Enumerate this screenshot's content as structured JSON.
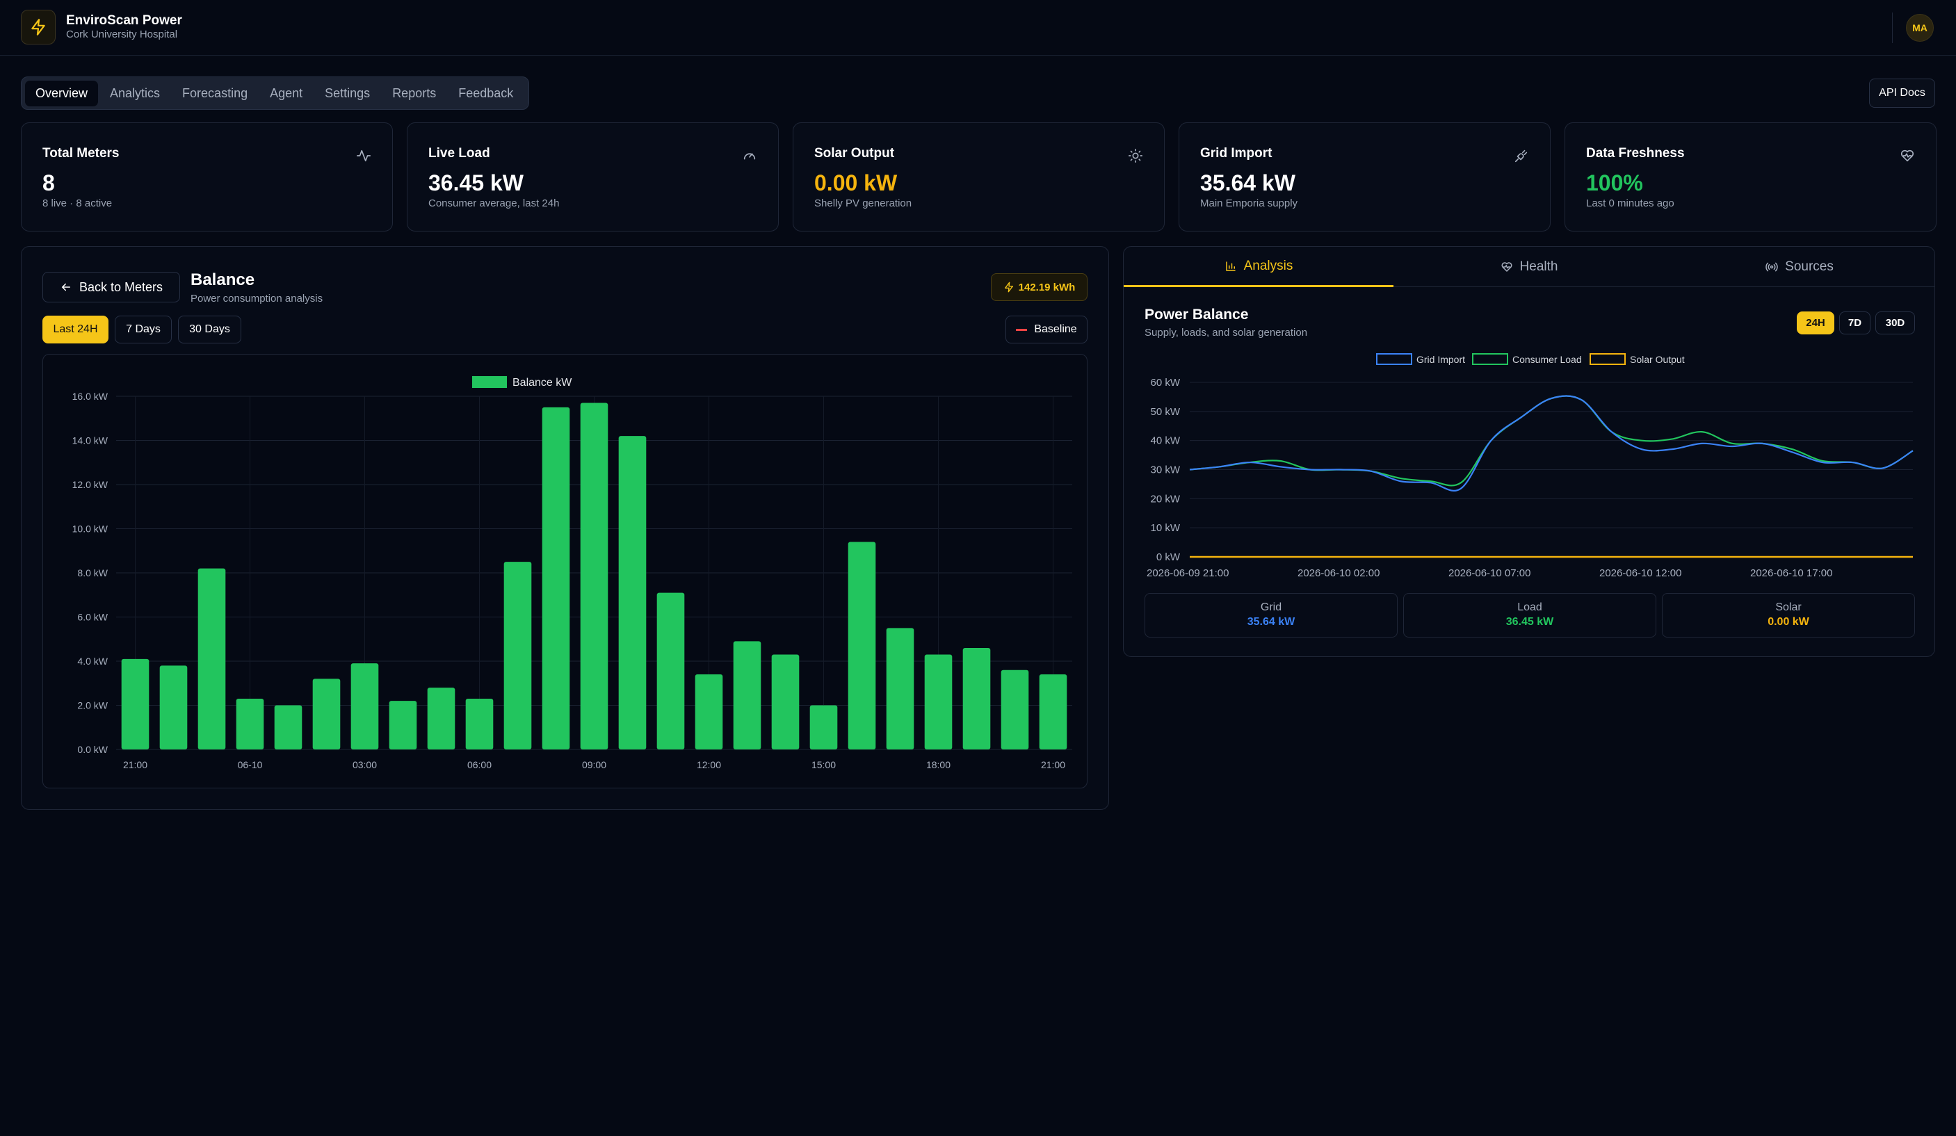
{
  "app": {
    "title": "EnviroScan Power",
    "subtitle": "Cork University Hospital",
    "user_initials": "MA"
  },
  "nav": {
    "tabs": [
      {
        "label": "Overview",
        "active": true
      },
      {
        "label": "Analytics"
      },
      {
        "label": "Forecasting"
      },
      {
        "label": "Agent"
      },
      {
        "label": "Settings"
      },
      {
        "label": "Reports"
      },
      {
        "label": "Feedback"
      }
    ],
    "api_docs": "API Docs"
  },
  "stats": [
    {
      "title": "Total Meters",
      "value": "8",
      "sub": "8 live · 8 active",
      "icon": "activity-icon",
      "color": "#ffffff"
    },
    {
      "title": "Live Load",
      "value": "36.45 kW",
      "sub": "Consumer average, last 24h",
      "icon": "gauge-icon",
      "color": "#ffffff"
    },
    {
      "title": "Solar Output",
      "value": "0.00 kW",
      "sub": "Shelly PV generation",
      "icon": "sun-icon",
      "color": "#f5b40e"
    },
    {
      "title": "Grid Import",
      "value": "35.64 kW",
      "sub": "Main Emporia supply",
      "icon": "plug-icon",
      "color": "#ffffff"
    },
    {
      "title": "Data Freshness",
      "value": "100%",
      "sub": "Last 0 minutes ago",
      "icon": "heart-pulse-icon",
      "color": "#22c55e"
    }
  ],
  "balance": {
    "back_label": "Back to Meters",
    "title": "Balance",
    "subtitle": "Power consumption analysis",
    "total": "142.19 kWh",
    "ranges": [
      "Last 24H",
      "7 Days",
      "30 Days"
    ],
    "baseline_label": "Baseline"
  },
  "right_panel": {
    "tabs": [
      "Analysis",
      "Health",
      "Sources"
    ],
    "title": "Power Balance",
    "subtitle": "Supply, loads, and solar generation",
    "periods": [
      "24H",
      "7D",
      "30D"
    ],
    "summary": [
      {
        "label": "Grid",
        "value": "35.64 kW",
        "color": "#3b82f6"
      },
      {
        "label": "Load",
        "value": "36.45 kW",
        "color": "#22c55e"
      },
      {
        "label": "Solar",
        "value": "0.00 kW",
        "color": "#f5b40e"
      }
    ]
  },
  "chart_data": [
    {
      "type": "bar",
      "legend": [
        "Balance kW"
      ],
      "color": "#22c55e",
      "ylim": [
        0,
        16
      ],
      "yticks": [
        "0.0 kW",
        "2.0 kW",
        "4.0 kW",
        "6.0 kW",
        "8.0 kW",
        "10.0 kW",
        "12.0 kW",
        "14.0 kW",
        "16.0 kW"
      ],
      "xtick_labels": [
        "21:00",
        "06-10",
        "03:00",
        "06:00",
        "09:00",
        "12:00",
        "15:00",
        "18:00",
        "21:00"
      ],
      "series": [
        {
          "name": "Balance kW",
          "values": [
            4.1,
            3.8,
            8.2,
            2.3,
            2.0,
            3.2,
            3.9,
            2.2,
            2.8,
            2.3,
            8.5,
            15.5,
            15.7,
            14.2,
            7.1,
            3.4,
            4.9,
            4.3,
            2.0,
            9.4,
            5.5,
            4.3,
            4.6,
            3.6,
            3.4
          ]
        }
      ]
    },
    {
      "type": "line",
      "ylim": [
        0,
        60
      ],
      "yticks": [
        "0 kW",
        "10 kW",
        "20 kW",
        "30 kW",
        "40 kW",
        "50 kW",
        "60 kW"
      ],
      "xtick_labels": [
        "2026-06-09 21:00",
        "2026-06-10 02:00",
        "2026-06-10 07:00",
        "2026-06-10 12:00",
        "2026-06-10 17:00"
      ],
      "series": [
        {
          "name": "Grid Import",
          "color": "#3b82f6",
          "values": [
            30,
            31,
            32.5,
            31,
            30,
            30,
            29.5,
            26,
            25.5,
            23.5,
            40,
            48,
            54.5,
            54,
            43,
            37,
            37,
            39,
            38,
            39,
            36,
            32.5,
            32.5,
            30.5,
            36.5
          ]
        },
        {
          "name": "Consumer Load",
          "color": "#22c55e",
          "values": [
            30,
            31,
            32.5,
            33,
            30,
            30,
            29.5,
            27,
            26,
            25.5,
            40,
            48,
            54.5,
            54,
            43,
            40,
            40.5,
            43,
            39,
            39,
            37,
            33,
            32.5,
            30.5,
            36.5
          ]
        },
        {
          "name": "Solar Output",
          "color": "#f5b40e",
          "values": [
            0,
            0,
            0,
            0,
            0,
            0,
            0,
            0,
            0,
            0,
            0,
            0,
            0,
            0,
            0,
            0,
            0,
            0,
            0,
            0,
            0,
            0,
            0,
            0,
            0
          ]
        }
      ]
    }
  ]
}
